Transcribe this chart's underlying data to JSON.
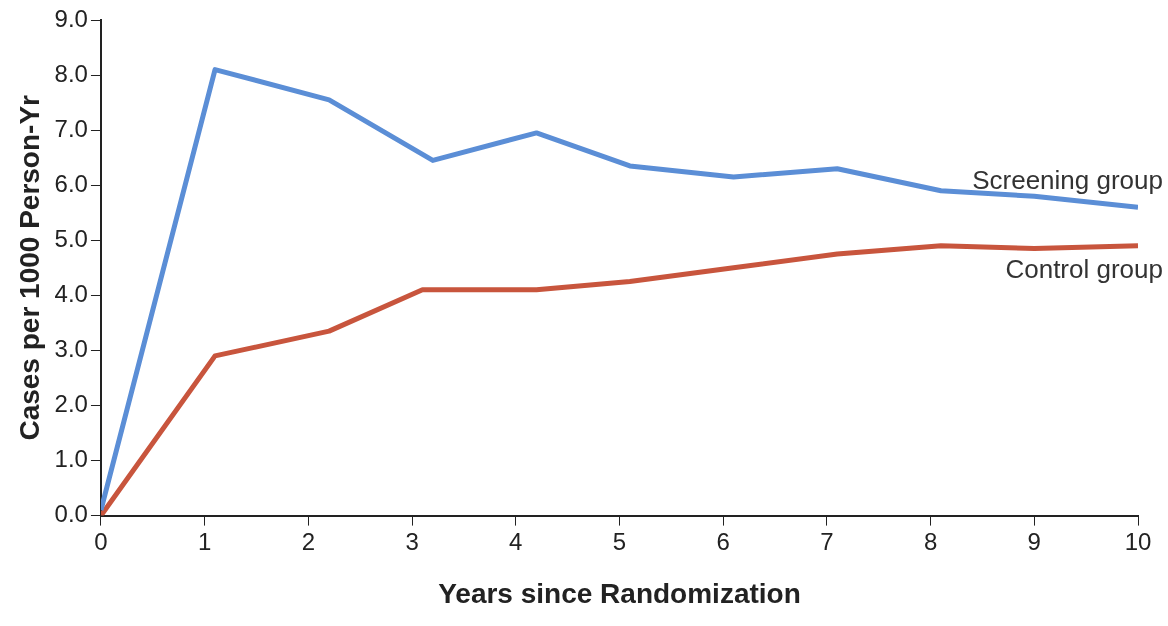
{
  "chart_data": {
    "type": "line",
    "xlabel": "Years since Randomization",
    "ylabel": "Cases per 1000 Person-Yr",
    "xlim": [
      0,
      10
    ],
    "xticks": [
      0,
      1,
      2,
      3,
      4,
      5,
      6,
      7,
      8,
      9,
      10
    ],
    "ylim": [
      0,
      9
    ],
    "yticks": [
      {
        "value": 0,
        "label": "0.0"
      },
      {
        "value": 1,
        "label": "1.0"
      },
      {
        "value": 2,
        "label": "2.0"
      },
      {
        "value": 3,
        "label": "3.0"
      },
      {
        "value": 4,
        "label": "4.0"
      },
      {
        "value": 5,
        "label": "5.0"
      },
      {
        "value": 6,
        "label": "6.0"
      },
      {
        "value": 7,
        "label": "7.0"
      },
      {
        "value": 8,
        "label": "8.0"
      },
      {
        "value": 9,
        "label": "9.0"
      }
    ],
    "grid": false,
    "legend": false,
    "marker": "none",
    "line_style": "solid",
    "series": [
      {
        "name": "Screening group",
        "color": "#5b8ed6",
        "x": [
          0,
          1.1,
          2.2,
          3.2,
          4.2,
          5.1,
          6.1,
          7.1,
          8.1,
          9,
          10
        ],
        "values": [
          0.1,
          8.1,
          7.55,
          6.45,
          6.95,
          6.35,
          6.15,
          6.3,
          5.9,
          5.8,
          5.6
        ]
      },
      {
        "name": "Control group",
        "color": "#c8553d",
        "x": [
          0,
          1.1,
          2.2,
          3.1,
          4.2,
          5.1,
          6.1,
          7.1,
          8.1,
          9,
          10
        ],
        "values": [
          0,
          2.9,
          3.35,
          4.1,
          4.1,
          4.25,
          4.5,
          4.75,
          4.9,
          4.85,
          4.9
        ]
      }
    ]
  }
}
